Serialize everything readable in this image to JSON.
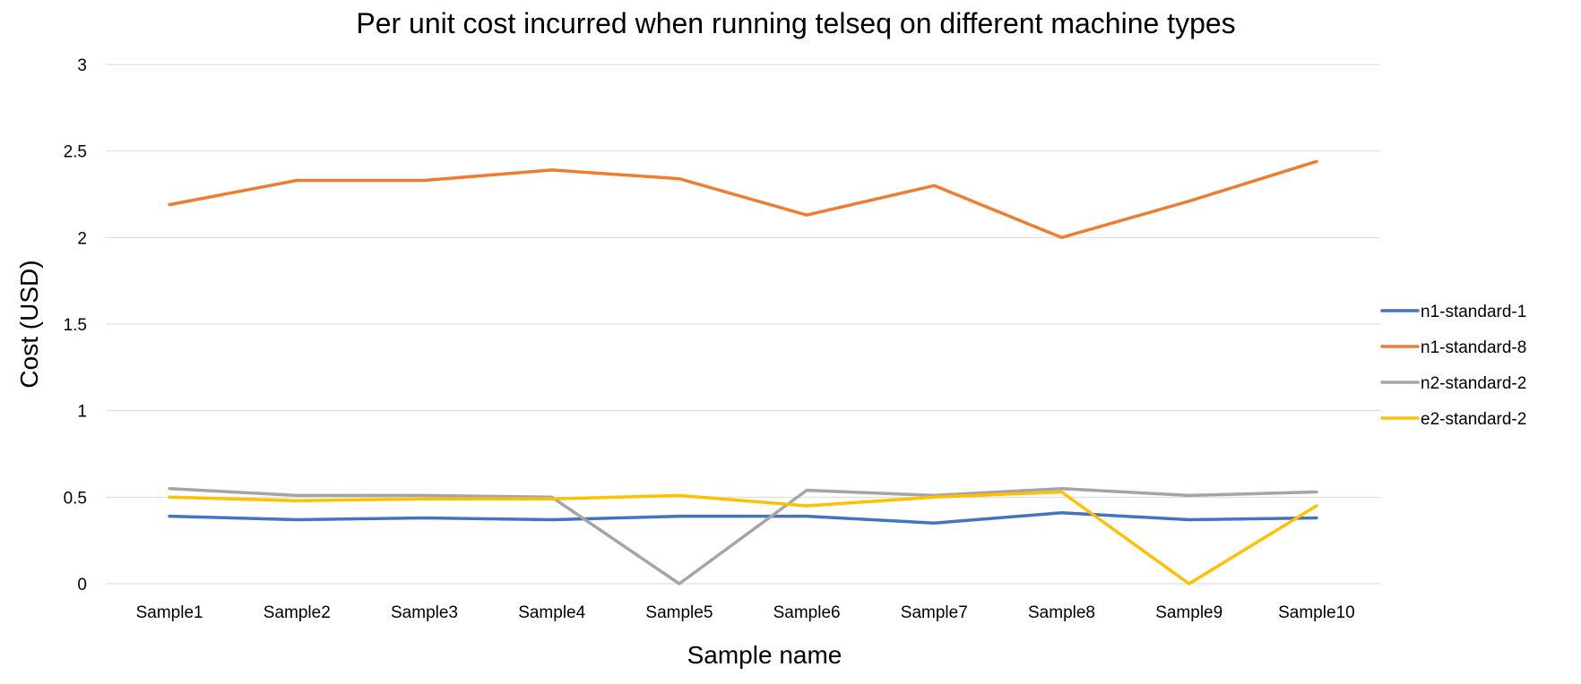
{
  "chart_data": {
    "type": "line",
    "title": "Per unit cost incurred when running telseq on different machine types",
    "xlabel": "Sample name",
    "ylabel": "Cost (USD)",
    "ylim": [
      0,
      3
    ],
    "yticks": [
      "0",
      "0.5",
      "1",
      "1.5",
      "2",
      "2.5",
      "3"
    ],
    "ytick_values": [
      0,
      0.5,
      1,
      1.5,
      2,
      2.5,
      3
    ],
    "grid": true,
    "legend_position": "right",
    "categories": [
      "Sample1",
      "Sample2",
      "Sample3",
      "Sample4",
      "Sample5",
      "Sample6",
      "Sample7",
      "Sample8",
      "Sample9",
      "Sample10"
    ],
    "series": [
      {
        "name": "n1-standard-1",
        "color": "#4472C4",
        "values": [
          0.39,
          0.37,
          0.38,
          0.37,
          0.39,
          0.39,
          0.35,
          0.41,
          0.37,
          0.38
        ]
      },
      {
        "name": "n1-standard-8",
        "color": "#ED7D31",
        "values": [
          2.19,
          2.33,
          2.33,
          2.39,
          2.34,
          2.13,
          2.3,
          2.0,
          2.21,
          2.44
        ]
      },
      {
        "name": "n2-standard-2",
        "color": "#A5A5A5",
        "values": [
          0.55,
          0.51,
          0.51,
          0.5,
          0.0,
          0.54,
          0.51,
          0.55,
          0.51,
          0.53
        ]
      },
      {
        "name": "e2-standard-2",
        "color": "#FFC000",
        "values": [
          0.5,
          0.48,
          0.49,
          0.49,
          0.51,
          0.45,
          0.5,
          0.53,
          0.0,
          0.45
        ]
      }
    ]
  }
}
